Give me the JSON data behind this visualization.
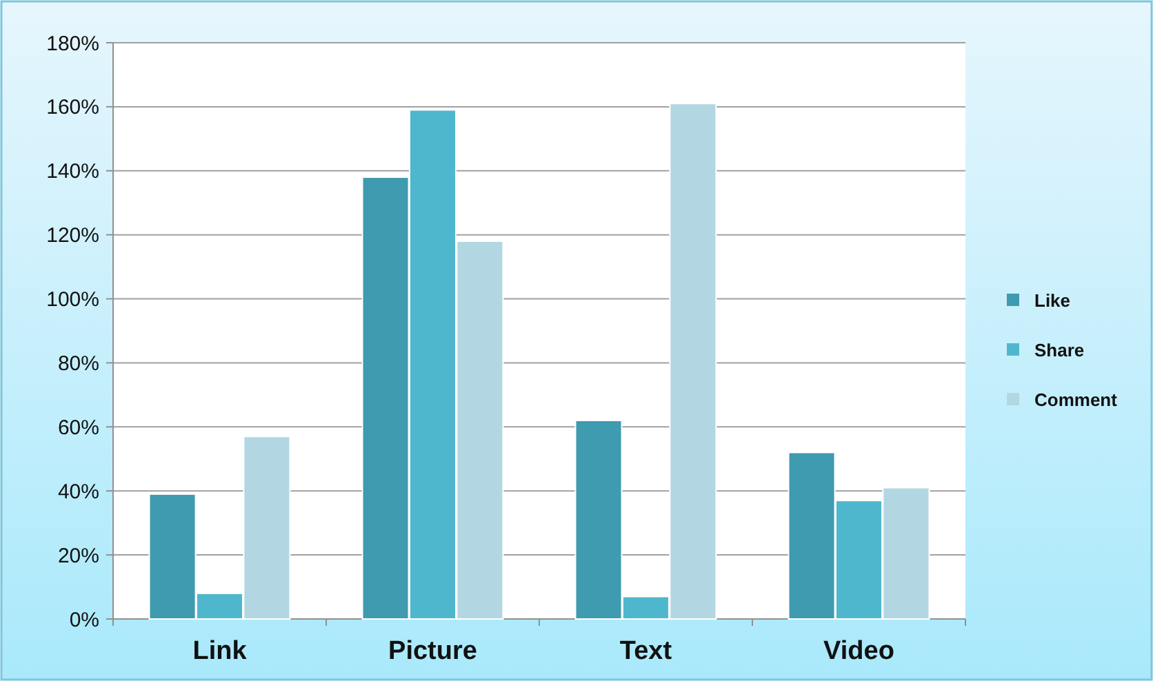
{
  "chart_data": {
    "type": "bar",
    "categories": [
      "Link",
      "Picture",
      "Text",
      "Video"
    ],
    "series": [
      {
        "name": "Like",
        "color": "#3e9bb0",
        "values": [
          39,
          138,
          62,
          52
        ]
      },
      {
        "name": "Share",
        "color": "#4fb7cd",
        "values": [
          8,
          159,
          7,
          37
        ]
      },
      {
        "name": "Comment",
        "color": "#b3d7e2",
        "values": [
          57,
          118,
          161,
          41
        ]
      }
    ],
    "ylim": [
      0,
      180
    ],
    "yticks": [
      {
        "value": 0,
        "label": "0%"
      },
      {
        "value": 20,
        "label": "20%"
      },
      {
        "value": 40,
        "label": "40%"
      },
      {
        "value": 60,
        "label": "60%"
      },
      {
        "value": 80,
        "label": "80%"
      },
      {
        "value": 100,
        "label": "100%"
      },
      {
        "value": 120,
        "label": "120%"
      },
      {
        "value": 140,
        "label": "140%"
      },
      {
        "value": 160,
        "label": "160%"
      },
      {
        "value": 180,
        "label": "180%"
      }
    ],
    "grid": "y",
    "legend": "right"
  }
}
